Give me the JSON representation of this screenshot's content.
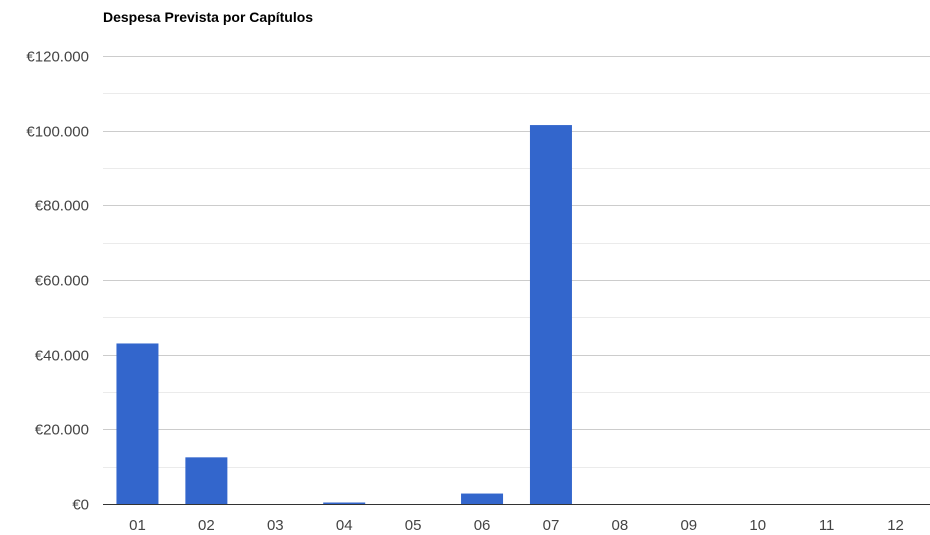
{
  "chart_data": {
    "type": "bar",
    "title": "Despesa Prevista por Capítulos",
    "xlabel": "",
    "ylabel": "",
    "categories": [
      "01",
      "02",
      "03",
      "04",
      "05",
      "06",
      "07",
      "08",
      "09",
      "10",
      "11",
      "12"
    ],
    "series": [
      {
        "values": [
          43000,
          12500,
          0,
          400,
          0,
          2800,
          101500,
          0,
          0,
          0,
          0,
          0
        ]
      }
    ],
    "ylim": [
      0,
      120000
    ],
    "yticks": [
      0,
      20000,
      40000,
      60000,
      80000,
      100000,
      120000
    ],
    "ytick_labels": [
      "€0",
      "€20.000",
      "€40.000",
      "€60.000",
      "€80.000",
      "€100.000",
      "€120.000"
    ],
    "grid": true,
    "legend": "none",
    "colors": {
      "bar": "#3366cc",
      "gridline": "#cccccc",
      "minor_gridline": "#ebebeb",
      "baseline": "#333333",
      "tick_text": "#444444"
    }
  }
}
